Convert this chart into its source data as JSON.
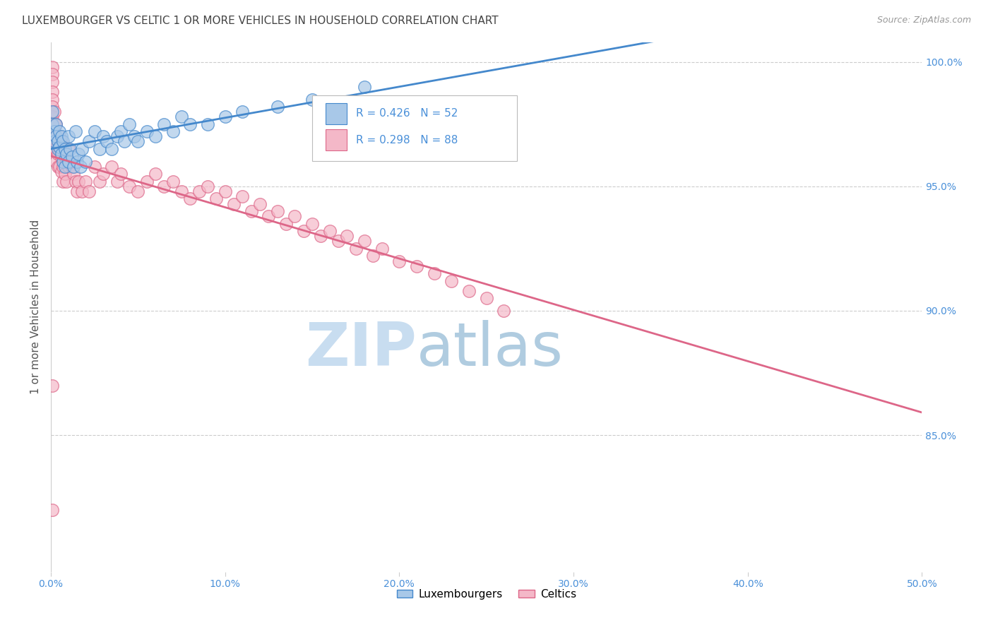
{
  "title": "LUXEMBOURGER VS CELTIC 1 OR MORE VEHICLES IN HOUSEHOLD CORRELATION CHART",
  "source": "Source: ZipAtlas.com",
  "ylabel": "1 or more Vehicles in Household",
  "ylabel_ticks": [
    "100.0%",
    "95.0%",
    "90.0%",
    "85.0%"
  ],
  "ylabel_tick_values": [
    1.0,
    0.95,
    0.9,
    0.85
  ],
  "legend_lux": "Luxembourgers",
  "legend_celt": "Celtics",
  "R_lux": 0.426,
  "N_lux": 52,
  "R_celt": 0.298,
  "N_celt": 88,
  "color_lux": "#a8c8e8",
  "color_celt": "#f4b8c8",
  "line_color_lux": "#4488cc",
  "line_color_celt": "#dd6688",
  "bg_color": "#ffffff",
  "grid_color": "#cccccc",
  "watermark_zip_color": "#c8ddf0",
  "watermark_atlas_color": "#b0cce0",
  "title_color": "#444444",
  "source_color": "#999999",
  "axis_label_color": "#4a90d9",
  "xlim": [
    0.0,
    0.5
  ],
  "ylim": [
    0.795,
    1.008
  ],
  "xticks": [
    0.0,
    0.1,
    0.2,
    0.3,
    0.4,
    0.5
  ],
  "xticklabels": [
    "0.0%",
    "10.0%",
    "20.0%",
    "30.0%",
    "40.0%",
    "50.0%"
  ],
  "lux_x": [
    0.001,
    0.001,
    0.002,
    0.002,
    0.003,
    0.003,
    0.004,
    0.004,
    0.005,
    0.005,
    0.006,
    0.006,
    0.007,
    0.007,
    0.008,
    0.008,
    0.009,
    0.01,
    0.01,
    0.011,
    0.012,
    0.013,
    0.014,
    0.015,
    0.016,
    0.017,
    0.018,
    0.02,
    0.022,
    0.025,
    0.028,
    0.03,
    0.032,
    0.035,
    0.038,
    0.04,
    0.042,
    0.045,
    0.048,
    0.05,
    0.055,
    0.06,
    0.065,
    0.07,
    0.075,
    0.08,
    0.09,
    0.1,
    0.11,
    0.13,
    0.15,
    0.18
  ],
  "lux_y": [
    0.98,
    0.975,
    0.972,
    0.968,
    0.975,
    0.97,
    0.968,
    0.965,
    0.972,
    0.966,
    0.97,
    0.963,
    0.968,
    0.96,
    0.965,
    0.958,
    0.963,
    0.97,
    0.96,
    0.965,
    0.962,
    0.958,
    0.972,
    0.96,
    0.963,
    0.958,
    0.965,
    0.96,
    0.968,
    0.972,
    0.965,
    0.97,
    0.968,
    0.965,
    0.97,
    0.972,
    0.968,
    0.975,
    0.97,
    0.968,
    0.972,
    0.97,
    0.975,
    0.972,
    0.978,
    0.975,
    0.975,
    0.978,
    0.98,
    0.982,
    0.985,
    0.99
  ],
  "celt_x": [
    0.001,
    0.001,
    0.001,
    0.001,
    0.001,
    0.001,
    0.001,
    0.002,
    0.002,
    0.002,
    0.002,
    0.002,
    0.003,
    0.003,
    0.003,
    0.003,
    0.004,
    0.004,
    0.004,
    0.005,
    0.005,
    0.005,
    0.006,
    0.006,
    0.006,
    0.007,
    0.007,
    0.007,
    0.008,
    0.008,
    0.009,
    0.009,
    0.01,
    0.01,
    0.011,
    0.012,
    0.013,
    0.014,
    0.015,
    0.016,
    0.018,
    0.02,
    0.022,
    0.025,
    0.028,
    0.03,
    0.035,
    0.038,
    0.04,
    0.045,
    0.05,
    0.055,
    0.06,
    0.065,
    0.07,
    0.075,
    0.08,
    0.085,
    0.09,
    0.095,
    0.1,
    0.105,
    0.11,
    0.115,
    0.12,
    0.125,
    0.13,
    0.135,
    0.14,
    0.145,
    0.15,
    0.155,
    0.16,
    0.165,
    0.17,
    0.175,
    0.18,
    0.185,
    0.19,
    0.2,
    0.21,
    0.22,
    0.23,
    0.24,
    0.25,
    0.26,
    0.001,
    0.001
  ],
  "celt_y": [
    0.998,
    0.995,
    0.992,
    0.988,
    0.985,
    0.982,
    0.978,
    0.98,
    0.975,
    0.972,
    0.968,
    0.965,
    0.975,
    0.97,
    0.965,
    0.96,
    0.968,
    0.963,
    0.958,
    0.97,
    0.965,
    0.958,
    0.968,
    0.962,
    0.956,
    0.965,
    0.958,
    0.952,
    0.962,
    0.955,
    0.96,
    0.952,
    0.965,
    0.958,
    0.96,
    0.958,
    0.955,
    0.952,
    0.948,
    0.952,
    0.948,
    0.952,
    0.948,
    0.958,
    0.952,
    0.955,
    0.958,
    0.952,
    0.955,
    0.95,
    0.948,
    0.952,
    0.955,
    0.95,
    0.952,
    0.948,
    0.945,
    0.948,
    0.95,
    0.945,
    0.948,
    0.943,
    0.946,
    0.94,
    0.943,
    0.938,
    0.94,
    0.935,
    0.938,
    0.932,
    0.935,
    0.93,
    0.932,
    0.928,
    0.93,
    0.925,
    0.928,
    0.922,
    0.925,
    0.92,
    0.918,
    0.915,
    0.912,
    0.908,
    0.905,
    0.9,
    0.87,
    0.82
  ]
}
